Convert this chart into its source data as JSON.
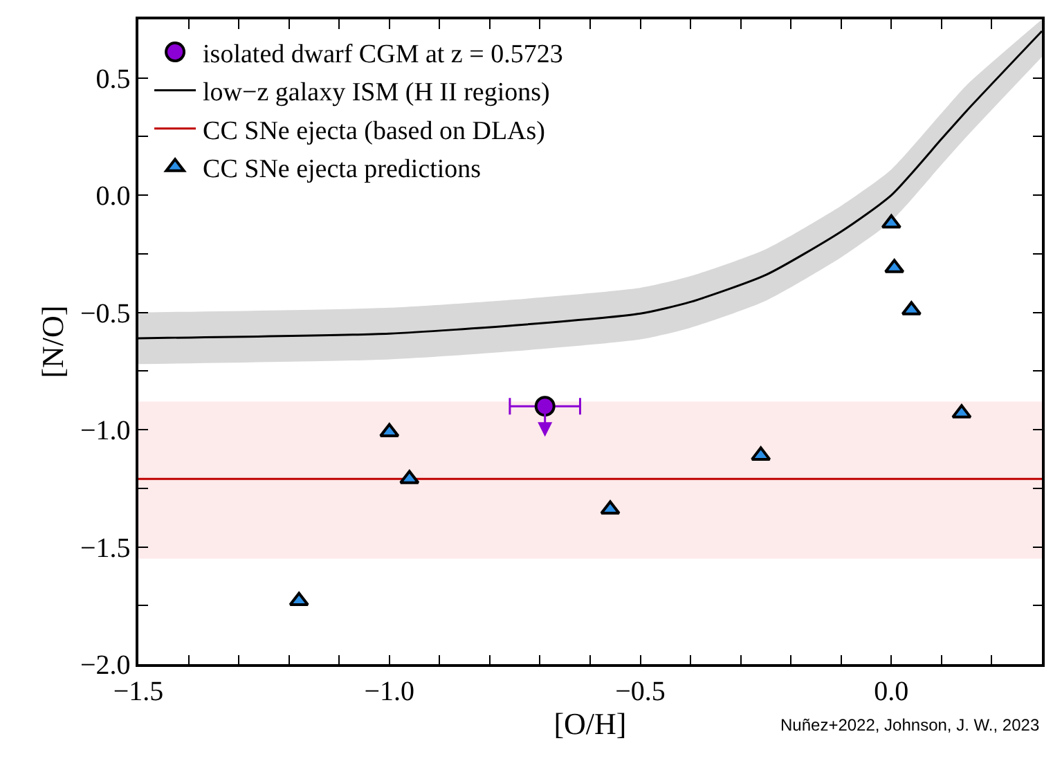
{
  "chart_data": {
    "type": "scatter",
    "xlabel": "[O/H]",
    "ylabel": "[N/O]",
    "xlim": [
      -1.5,
      0.3
    ],
    "ylim": [
      -2.0,
      0.75
    ],
    "xticks": [
      -1.5,
      {
        "value": -1.4,
        "label": null
      },
      {
        "value": -1.3,
        "label": null
      },
      {
        "value": -1.2,
        "label": null
      },
      {
        "value": -1.1,
        "label": null
      },
      {
        "value": -1.0,
        "label": "−1.0"
      },
      {
        "value": -0.9,
        "label": null
      },
      {
        "value": -0.8,
        "label": null
      },
      {
        "value": -0.7,
        "label": null
      },
      {
        "value": -0.6,
        "label": null
      },
      {
        "value": -0.5,
        "label": "−0.5"
      },
      {
        "value": -0.4,
        "label": null
      },
      {
        "value": -0.3,
        "label": null
      },
      {
        "value": -0.2,
        "label": null
      },
      {
        "value": -0.1,
        "label": null
      },
      {
        "value": 0.0,
        "label": "0.0"
      },
      {
        "value": 0.1,
        "label": null
      },
      {
        "value": 0.2,
        "label": null
      }
    ],
    "yticks": [
      {
        "value": -2.0,
        "label": "−2.0"
      },
      {
        "value": -1.75,
        "label": null
      },
      {
        "value": -1.5,
        "label": "−1.5"
      },
      {
        "value": -1.25,
        "label": null
      },
      {
        "value": -1.0,
        "label": "−1.0"
      },
      {
        "value": -0.75,
        "label": null
      },
      {
        "value": -0.5,
        "label": "−0.5"
      },
      {
        "value": -0.25,
        "label": null
      },
      {
        "value": 0.0,
        "label": "0.0"
      },
      {
        "value": 0.25,
        "label": null
      },
      {
        "value": 0.5,
        "label": "0.5"
      }
    ],
    "grid": false,
    "legend": "top left",
    "series": [
      {
        "name": "isolated dwarf CGM at z = 0.5723",
        "marker": "circle",
        "color": "#8b00d4",
        "x": [
          -0.69
        ],
        "values": [
          -0.9
        ],
        "xerrors": [
          0.07
        ]
      },
      {
        "name": "low−z galaxy ISM (H II regions)",
        "type": "line",
        "marker": "none",
        "color": "#000000",
        "x": [
          -1.5,
          -1.0,
          -0.75,
          -0.5,
          -0.4,
          -0.25,
          -0.1,
          0.0,
          0.1,
          0.15,
          0.3
        ],
        "values": [
          -0.61,
          -0.59,
          -0.555,
          -0.505,
          -0.455,
          -0.34,
          -0.155,
          0.0,
          0.24,
          0.36,
          0.7
        ],
        "lower": [
          -0.72,
          -0.7,
          -0.665,
          -0.615,
          -0.565,
          -0.45,
          -0.265,
          -0.11,
          0.13,
          0.25,
          0.59
        ],
        "upper": [
          -0.5,
          -0.48,
          -0.445,
          -0.395,
          -0.345,
          -0.23,
          -0.045,
          0.11,
          0.35,
          0.47,
          0.75
        ]
      },
      {
        "name": "CC SNe ejecta predictions",
        "marker": "triangle",
        "color": "#2b8fe6",
        "x": [
          -1.18,
          -1.0,
          -0.96,
          -0.56,
          -0.26,
          0.0,
          0.006,
          0.04,
          0.14
        ],
        "values": [
          -1.73,
          -1.01,
          -1.21,
          -1.34,
          -1.11,
          -0.12,
          -0.31,
          -0.49,
          -0.93
        ]
      }
    ],
    "ref_lines": [
      {
        "axis": "y",
        "value": -1.21,
        "label": "CC SNe ejecta (based on DLAs)",
        "color": "#c00000",
        "line_style": "solid"
      }
    ],
    "bands": [
      {
        "axis": "y",
        "from": -1.55,
        "to": -0.88,
        "color": "#fdeaea"
      }
    ],
    "annotations": [
      "Nuñez+2022, Johnson, J. W., 2023"
    ]
  }
}
